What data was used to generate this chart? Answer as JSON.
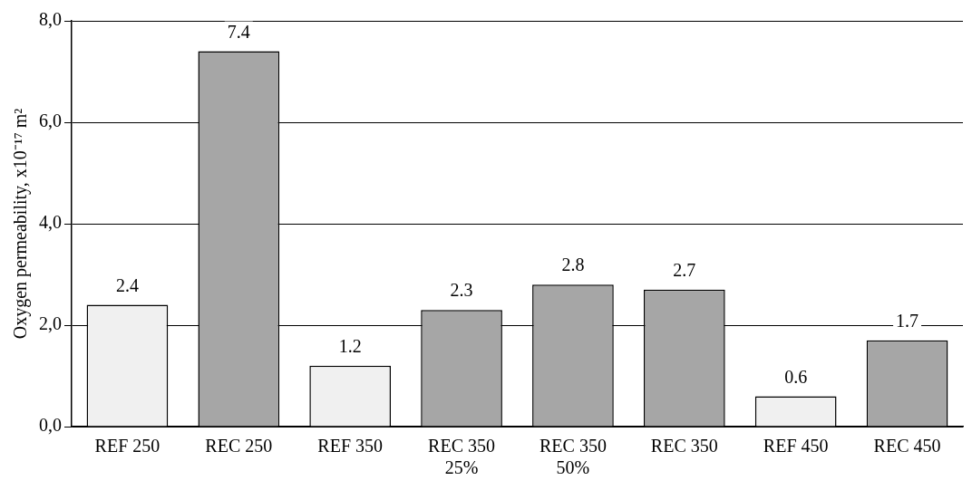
{
  "chart_data": {
    "type": "bar",
    "ylabel": "Oxygen permeability, x10⁻¹⁷ m²",
    "categories": [
      "REF 250",
      "REC 250",
      "REF 350",
      "REC 350\n25%",
      "REC 350\n50%",
      "REC 350",
      "REF 450",
      "REC 450"
    ],
    "values": [
      2.4,
      7.4,
      1.2,
      2.3,
      2.8,
      2.7,
      0.6,
      1.7
    ],
    "colors": [
      "#f0f0f0",
      "#a6a6a6",
      "#f0f0f0",
      "#a6a6a6",
      "#a6a6a6",
      "#a6a6a6",
      "#f0f0f0",
      "#a6a6a6"
    ],
    "ylim": [
      0,
      8
    ],
    "yticks": [
      {
        "value": 0,
        "label": "0,0"
      },
      {
        "value": 2,
        "label": "2,0"
      },
      {
        "value": 4,
        "label": "4,0"
      },
      {
        "value": 6,
        "label": "6,0"
      },
      {
        "value": 8,
        "label": "8,0"
      }
    ],
    "grid": "y",
    "data_labels": true
  }
}
